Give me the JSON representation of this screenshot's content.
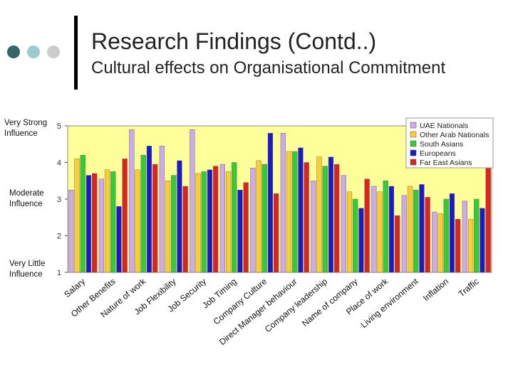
{
  "slide": {
    "title": "Research Findings (Contd..)",
    "subtitle": "Cultural effects on Organisational Commitment",
    "bullet_colors": [
      "#336666",
      "#99cccc",
      "#cccccc"
    ]
  },
  "side_labels": {
    "very_strong": [
      "Very Strong",
      "Influence"
    ],
    "moderate": [
      "Moderate",
      "Influence"
    ],
    "very_little": [
      "Very Little",
      "Influence"
    ]
  },
  "chart_data": {
    "type": "bar",
    "title": "",
    "xlabel": "",
    "ylabel": "",
    "ylim": [
      1,
      5
    ],
    "yticks": [
      1,
      2,
      3,
      4,
      5
    ],
    "grid": false,
    "legend_position": "top-right",
    "plot_background": "#ffff99",
    "categories": [
      "Salary",
      "Other Benefits",
      "Nature of work",
      "Job Flexibility",
      "Job Security",
      "Job Timing",
      "Company Culture",
      "Direct Manager behaviour",
      "Company leadership",
      "Name of company",
      "Place of work",
      "Living environment",
      "Inflation",
      "Traffic"
    ],
    "series": [
      {
        "name": "UAE Nationals",
        "color": "#ccaaee",
        "values": [
          3.25,
          3.55,
          4.9,
          4.45,
          4.9,
          3.95,
          3.85,
          4.8,
          3.5,
          3.65,
          3.35,
          3.1,
          2.65,
          2.95
        ]
      },
      {
        "name": "Other Arab Nationals",
        "color": "#ffcc33",
        "values": [
          4.1,
          3.8,
          3.8,
          3.5,
          3.7,
          3.75,
          4.05,
          4.3,
          4.15,
          3.2,
          3.2,
          3.35,
          2.6,
          2.45
        ]
      },
      {
        "name": "South Asians",
        "color": "#33cc33",
        "values": [
          4.2,
          3.75,
          4.2,
          3.65,
          3.75,
          4.0,
          3.95,
          4.3,
          3.9,
          3.0,
          3.5,
          3.25,
          3.0,
          3.0
        ]
      },
      {
        "name": "Europeans",
        "color": "#1a1acc",
        "values": [
          3.65,
          2.8,
          4.45,
          4.05,
          3.8,
          3.25,
          4.8,
          4.4,
          4.15,
          2.75,
          3.35,
          3.4,
          3.15,
          2.75
        ]
      },
      {
        "name": "Far East Asians",
        "color": "#dd2222",
        "values": [
          3.7,
          4.1,
          3.95,
          3.35,
          3.9,
          3.45,
          3.15,
          4.0,
          3.95,
          3.55,
          2.55,
          3.05,
          2.45,
          3.85
        ]
      }
    ]
  }
}
